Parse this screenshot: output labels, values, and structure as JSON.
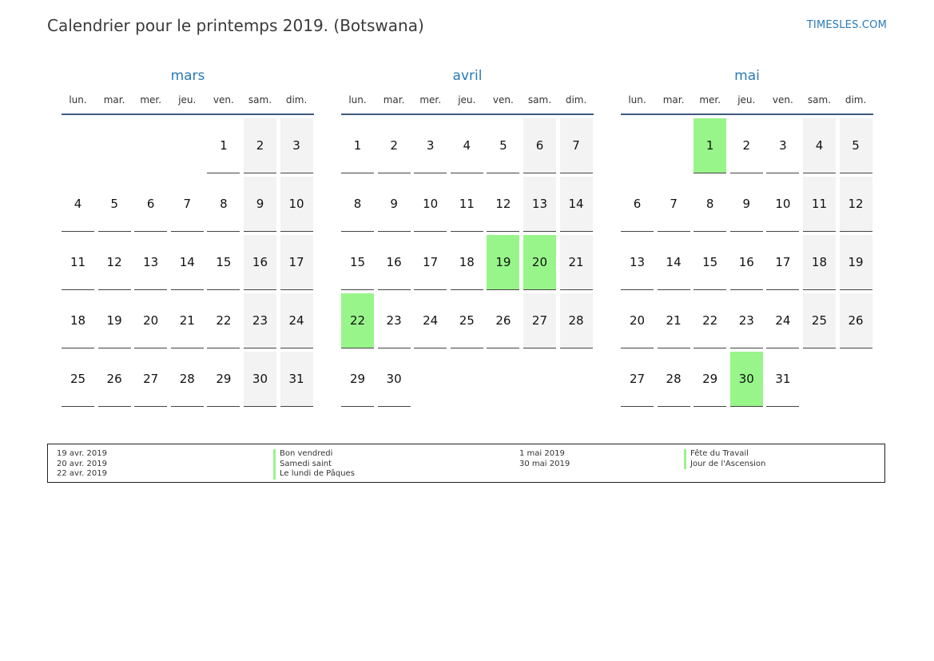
{
  "header": {
    "title": "Calendrier pour le printemps 2019. (Botswana)",
    "site": "TIMESLES.COM"
  },
  "weekdays": [
    "lun.",
    "mar.",
    "mer.",
    "jeu.",
    "ven.",
    "sam.",
    "dim."
  ],
  "colors": {
    "accent": "#2a7ab8",
    "holiday": "#98f58a",
    "weekend": "#f3f3f3"
  },
  "months": [
    {
      "name": "mars",
      "start_offset": 4,
      "days": 31,
      "holidays": []
    },
    {
      "name": "avril",
      "start_offset": 0,
      "days": 30,
      "holidays": [
        19,
        20,
        22
      ]
    },
    {
      "name": "mai",
      "start_offset": 2,
      "days": 31,
      "holidays": [
        1,
        30
      ]
    }
  ],
  "legend": {
    "group1": {
      "dates": [
        "19 avr. 2019",
        "20 avr. 2019",
        "22 avr. 2019"
      ],
      "names": [
        "Bon vendredi",
        "Samedi saint",
        "Le lundi de Pâques"
      ]
    },
    "group2": {
      "dates": [
        "1 mai 2019",
        "30 mai 2019"
      ],
      "names": [
        "Fête du Travail",
        "Jour de l'Ascension"
      ]
    }
  }
}
